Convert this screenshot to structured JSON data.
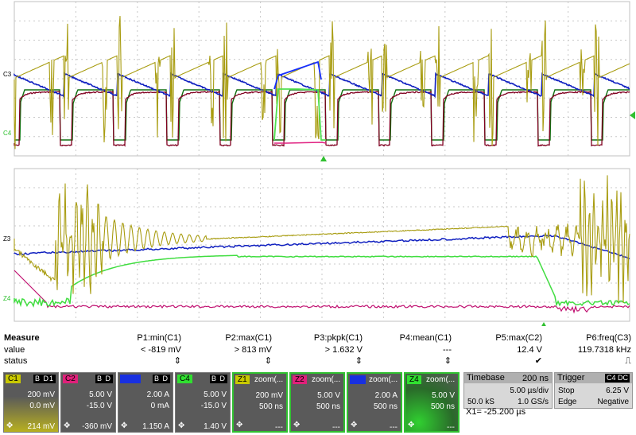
{
  "measure": {
    "title": "Measure",
    "row_labels": [
      "value",
      "status"
    ],
    "params": [
      {
        "name": "P1:min(C1)",
        "value": "< -819 mV",
        "status": "⇕"
      },
      {
        "name": "P2:max(C1)",
        "value": "> 813 mV",
        "status": "⇕"
      },
      {
        "name": "P3:pkpk(C1)",
        "value": "> 1.632 V",
        "status": "⇕"
      },
      {
        "name": "P4:mean(C1)",
        "value": "---",
        "status": "⇕"
      },
      {
        "name": "P5:max(C2)",
        "value": "12.4 V",
        "status": "✔"
      },
      {
        "name": "P6:freq(C3)",
        "value": "119.7318 kHz",
        "status": "⎍"
      }
    ]
  },
  "channels": [
    {
      "tag": "C1",
      "flags": "B D1",
      "l1": "200 mV",
      "l2": "0.0 mV",
      "l3": "214 mV",
      "color": "#c8c800"
    },
    {
      "tag": "C2",
      "flags": "B D",
      "l1": "5.00 V",
      "l2": "-15.0 V",
      "l3": "-360 mV",
      "color": "#e0207a"
    },
    {
      "tag": "",
      "flags": "B D",
      "l1": "2.00 A",
      "l2": "0 mA",
      "l3": "1.150 A",
      "color": "#1830e0"
    },
    {
      "tag": "C4",
      "flags": "B D",
      "l1": "5.00 V",
      "l2": "-15.0 V",
      "l3": "1.40 V",
      "color": "#30e030"
    }
  ],
  "zooms": [
    {
      "tag": "Z1",
      "label": "zoom(...",
      "l1": "200 mV",
      "l2": "500 ns",
      "l3": "---",
      "color": "#c8c800"
    },
    {
      "tag": "Z2",
      "label": "zoom(...",
      "l1": "5.00 V",
      "l2": "500 ns",
      "l3": "---",
      "color": "#e0207a"
    },
    {
      "tag": "",
      "label": "zoom(...",
      "l1": "2.00 A",
      "l2": "500 ns",
      "l3": "---",
      "color": "#1830e0"
    },
    {
      "tag": "Z4",
      "label": "zoom(...",
      "l1": "5.00 V",
      "l2": "500 ns",
      "l3": "---",
      "color": "#30e030"
    }
  ],
  "timebase": {
    "title": "Timebase",
    "offset": "200 ns",
    "div": "5.00 µs/div",
    "samples": "50.0 kS",
    "rate": "1.0 GS/s"
  },
  "trigger": {
    "title": "Trigger",
    "source": "C4 DC",
    "mode": "Stop",
    "level": "6.25 V",
    "type": "Edge",
    "slope": "Negative"
  },
  "cursor": {
    "readout": "X1=  -25.200 µs"
  },
  "trace_labels": {
    "top": [
      "C3",
      "C4"
    ],
    "bottom": [
      "Z3",
      "Z4"
    ]
  },
  "colors": {
    "c1": "#a89c10",
    "c2": "#c01070",
    "c3": "#1020c0",
    "c4": "#30c030",
    "dark_green": "#107010",
    "dark_red": "#800020"
  }
}
